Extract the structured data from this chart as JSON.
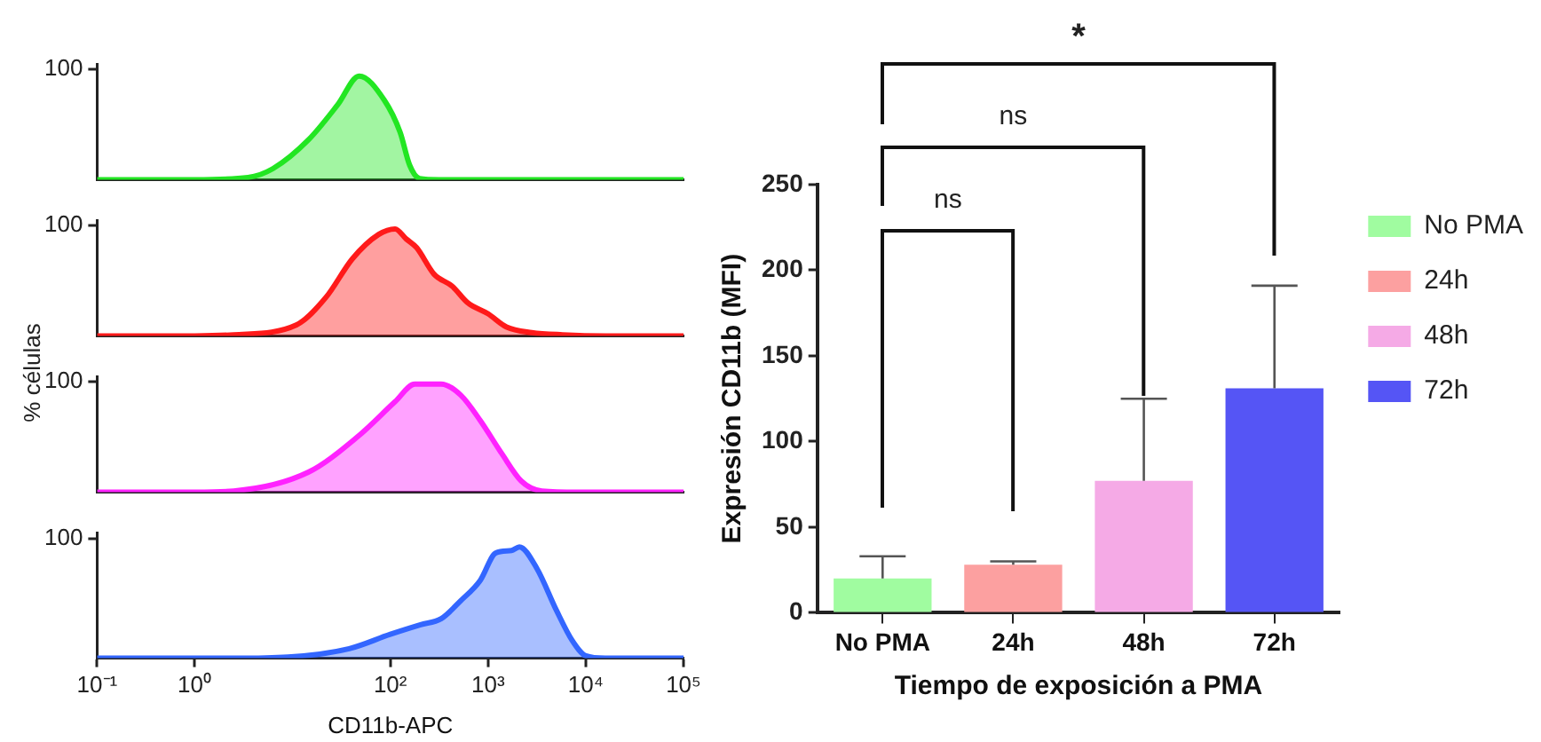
{
  "chart_data": [
    {
      "type": "area",
      "log": "x",
      "xlim": [
        0.1,
        100000
      ],
      "ylim": [
        0,
        105
      ],
      "yticks": [
        100
      ],
      "tick_labels": "y",
      "series": [
        {
          "color": "#22e622",
          "x": [
            0.1,
            1,
            3.5,
            6.3,
            14.5,
            29,
            48,
            87,
            126,
            158,
            200,
            316,
            100000
          ],
          "values": [
            0,
            0,
            2,
            10,
            36,
            68,
            94,
            72,
            43,
            13,
            1,
            0,
            0
          ]
        }
      ]
    },
    {
      "type": "area",
      "log": "x",
      "ylabel": "% células",
      "xlim": [
        0.1,
        100000
      ],
      "ylim": [
        0,
        105
      ],
      "yticks": [
        100
      ],
      "tick_labels": "y",
      "series": [
        {
          "color": "#ff1a1a",
          "x": [
            0.1,
            1,
            2.5,
            11,
            22,
            41,
            76,
            112,
            145,
            186,
            280,
            430,
            620,
            1000,
            1550,
            2800,
            5800,
            16000,
            100000
          ],
          "values": [
            0,
            0,
            1,
            10,
            35,
            70,
            92,
            97,
            88,
            80,
            56,
            45,
            30,
            20,
            8,
            3,
            1,
            0,
            0
          ]
        }
      ]
    },
    {
      "type": "area",
      "log": "x",
      "xlim": [
        0.1,
        100000
      ],
      "ylim": [
        0,
        105
      ],
      "yticks": [
        100
      ],
      "tick_labels": "y",
      "series": [
        {
          "color": "#ff22ff",
          "x": [
            0.1,
            1,
            2.5,
            14.5,
            46,
            112,
            178,
            331,
            525,
            832,
            1380,
            2190,
            3550,
            8300,
            100000
          ],
          "values": [
            0,
            0,
            1,
            18,
            50,
            82,
            98,
            98,
            88,
            65,
            35,
            10,
            1,
            0,
            0
          ]
        }
      ]
    },
    {
      "type": "area",
      "log": "x",
      "xlabel": "CD11b-APC",
      "xlim": [
        0.1,
        100000
      ],
      "xticks": [
        {
          "value": 0.1,
          "label": "10⁻¹"
        },
        {
          "value": 1,
          "label": "10⁰"
        },
        {
          "value": 100,
          "label": "10²"
        },
        {
          "value": 1000,
          "label": "10³"
        },
        {
          "value": 10000,
          "label": "10⁴"
        },
        {
          "value": 100000,
          "label": "10⁵"
        }
      ],
      "ylim": [
        0,
        105
      ],
      "yticks": [
        100
      ],
      "series": [
        {
          "color": "#3366ff",
          "x": [
            0.1,
            2.5,
            9,
            38,
            100,
            204,
            331,
            525,
            832,
            1200,
            1740,
            2090,
            3160,
            5010,
            7240,
            10000,
            15850,
            100000
          ],
          "values": [
            0,
            0,
            1,
            8,
            20,
            28,
            33,
            48,
            65,
            88,
            90,
            93,
            75,
            40,
            15,
            2,
            0,
            0
          ]
        }
      ]
    },
    {
      "type": "bar",
      "ylabel": "Expresión CD11b (MFI)",
      "xlabel": "Tiempo de exposición a PMA",
      "categories": [
        "No PMA",
        "24h",
        "48h",
        "72h"
      ],
      "ylim": [
        0,
        250
      ],
      "yticks": [
        0,
        50,
        100,
        150,
        200,
        250
      ],
      "legend": "right",
      "series": [
        {
          "name": "No PMA",
          "color": "#a0fca0",
          "values": [
            20,
            null,
            null,
            null
          ],
          "errors": [
            [
              20,
              33
            ],
            null,
            null,
            null
          ]
        },
        {
          "name": "24h",
          "color": "#fca0a0",
          "values": [
            null,
            28,
            null,
            null
          ],
          "errors": [
            null,
            [
              28,
              30
            ],
            null,
            null
          ]
        },
        {
          "name": "48h",
          "color": "#f5aae6",
          "values": [
            null,
            null,
            77,
            null
          ],
          "errors": [
            null,
            null,
            [
              77,
              125
            ],
            null
          ]
        },
        {
          "name": "72h",
          "color": "#5555f5",
          "values": [
            null,
            null,
            null,
            131
          ],
          "errors": [
            null,
            null,
            null,
            [
              131,
              191
            ]
          ]
        }
      ],
      "annotations": [
        "ns",
        "ns",
        "*"
      ]
    }
  ]
}
